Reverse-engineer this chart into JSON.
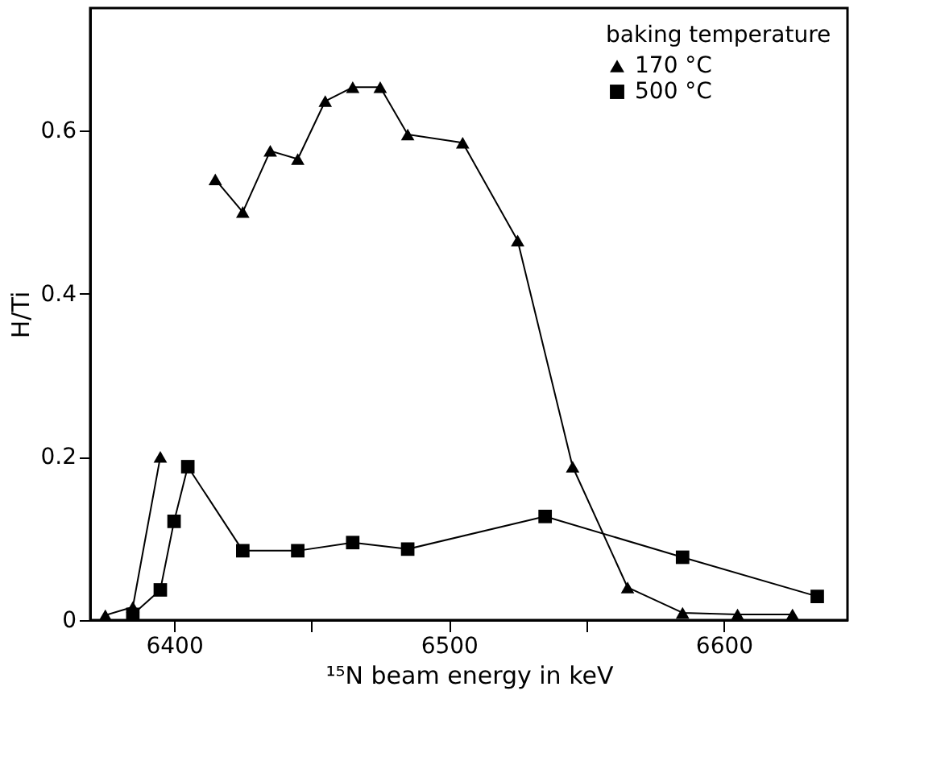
{
  "chart_data": {
    "type": "line",
    "xlabel": "¹⁵N beam energy in keV",
    "ylabel": "H/Ti",
    "legend_title": "baking temperature",
    "xlim": [
      6369.5,
      6645
    ],
    "ylim": [
      0,
      0.75
    ],
    "xticks": [
      6400,
      {
        "value": 6450,
        "label": null
      },
      6500,
      {
        "value": 6550,
        "label": null
      },
      6600
    ],
    "yticks": [
      0,
      0.2,
      0.4,
      0.6
    ],
    "grid": false,
    "legend": "top right",
    "line_style": "solid",
    "series": [
      {
        "name": "170 °C",
        "color": "#000000",
        "marker": "triangle",
        "x": [
          6375,
          6385,
          6395,
          6405,
          6415,
          6425,
          6435,
          6445,
          6455,
          6465,
          6475,
          6485,
          6505,
          6525,
          6545,
          6565,
          6585,
          6605,
          6625
        ],
        "values": [
          0.006,
          0.016,
          0.2,
          null,
          0.54,
          0.5,
          0.575,
          0.565,
          0.636,
          0.653,
          0.653,
          0.595,
          0.585,
          0.465,
          0.188,
          0.04,
          0.009,
          0.007,
          0.007
        ]
      },
      {
        "name": "500 °C",
        "color": "#000000",
        "marker": "square",
        "x": [
          6385,
          6395,
          6400,
          6405,
          6425,
          6445,
          6465,
          6485,
          6535,
          6585,
          6634
        ],
        "values": [
          0.007,
          0.037,
          0.121,
          0.188,
          0.085,
          0.085,
          0.095,
          0.087,
          0.127,
          0.077,
          0.029
        ]
      }
    ]
  }
}
